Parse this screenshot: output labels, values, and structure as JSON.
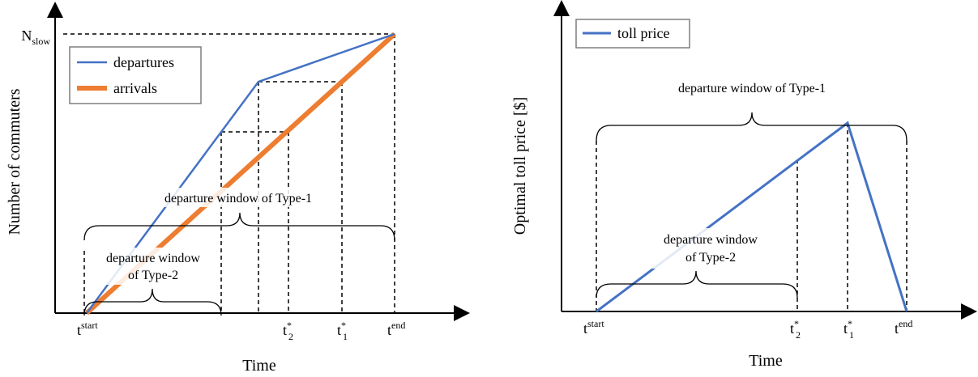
{
  "left_panel": {
    "legend": {
      "departures": "departures",
      "arrivals": "arrivals"
    },
    "ylabel": "Number of commuters",
    "xlabel": "Time",
    "y_tick": {
      "base": "N",
      "sub": "slow"
    },
    "x_ticks": {
      "t_start": {
        "base": "t",
        "sup": "start"
      },
      "t2": {
        "base": "t",
        "sup": "*",
        "sub": "2"
      },
      "t1": {
        "base": "t",
        "sup": "*",
        "sub": "1"
      },
      "t_end": {
        "base": "t",
        "sup": "end"
      }
    },
    "annotations": {
      "type1_window": "departure window of Type-1",
      "type2_window_line1": "departure window",
      "type2_window_line2": "of Type-2"
    }
  },
  "right_panel": {
    "legend": {
      "toll": "toll price"
    },
    "ylabel": "Optimal toll price [$]",
    "xlabel": "Time",
    "x_ticks": {
      "t_start": {
        "base": "t",
        "sup": "start"
      },
      "t2": {
        "base": "t",
        "sup": "*",
        "sub": "2"
      },
      "t1": {
        "base": "t",
        "sup": "*",
        "sub": "1"
      },
      "t_end": {
        "base": "t",
        "sup": "end"
      }
    },
    "annotations": {
      "type1_window": "departure window of Type-1",
      "type2_window_line1": "departure window",
      "type2_window_line2": "of Type-2"
    }
  },
  "colors": {
    "departures": "#4472c4",
    "arrivals": "#ed7d31",
    "toll": "#4472c4",
    "axis": "#000000"
  }
}
